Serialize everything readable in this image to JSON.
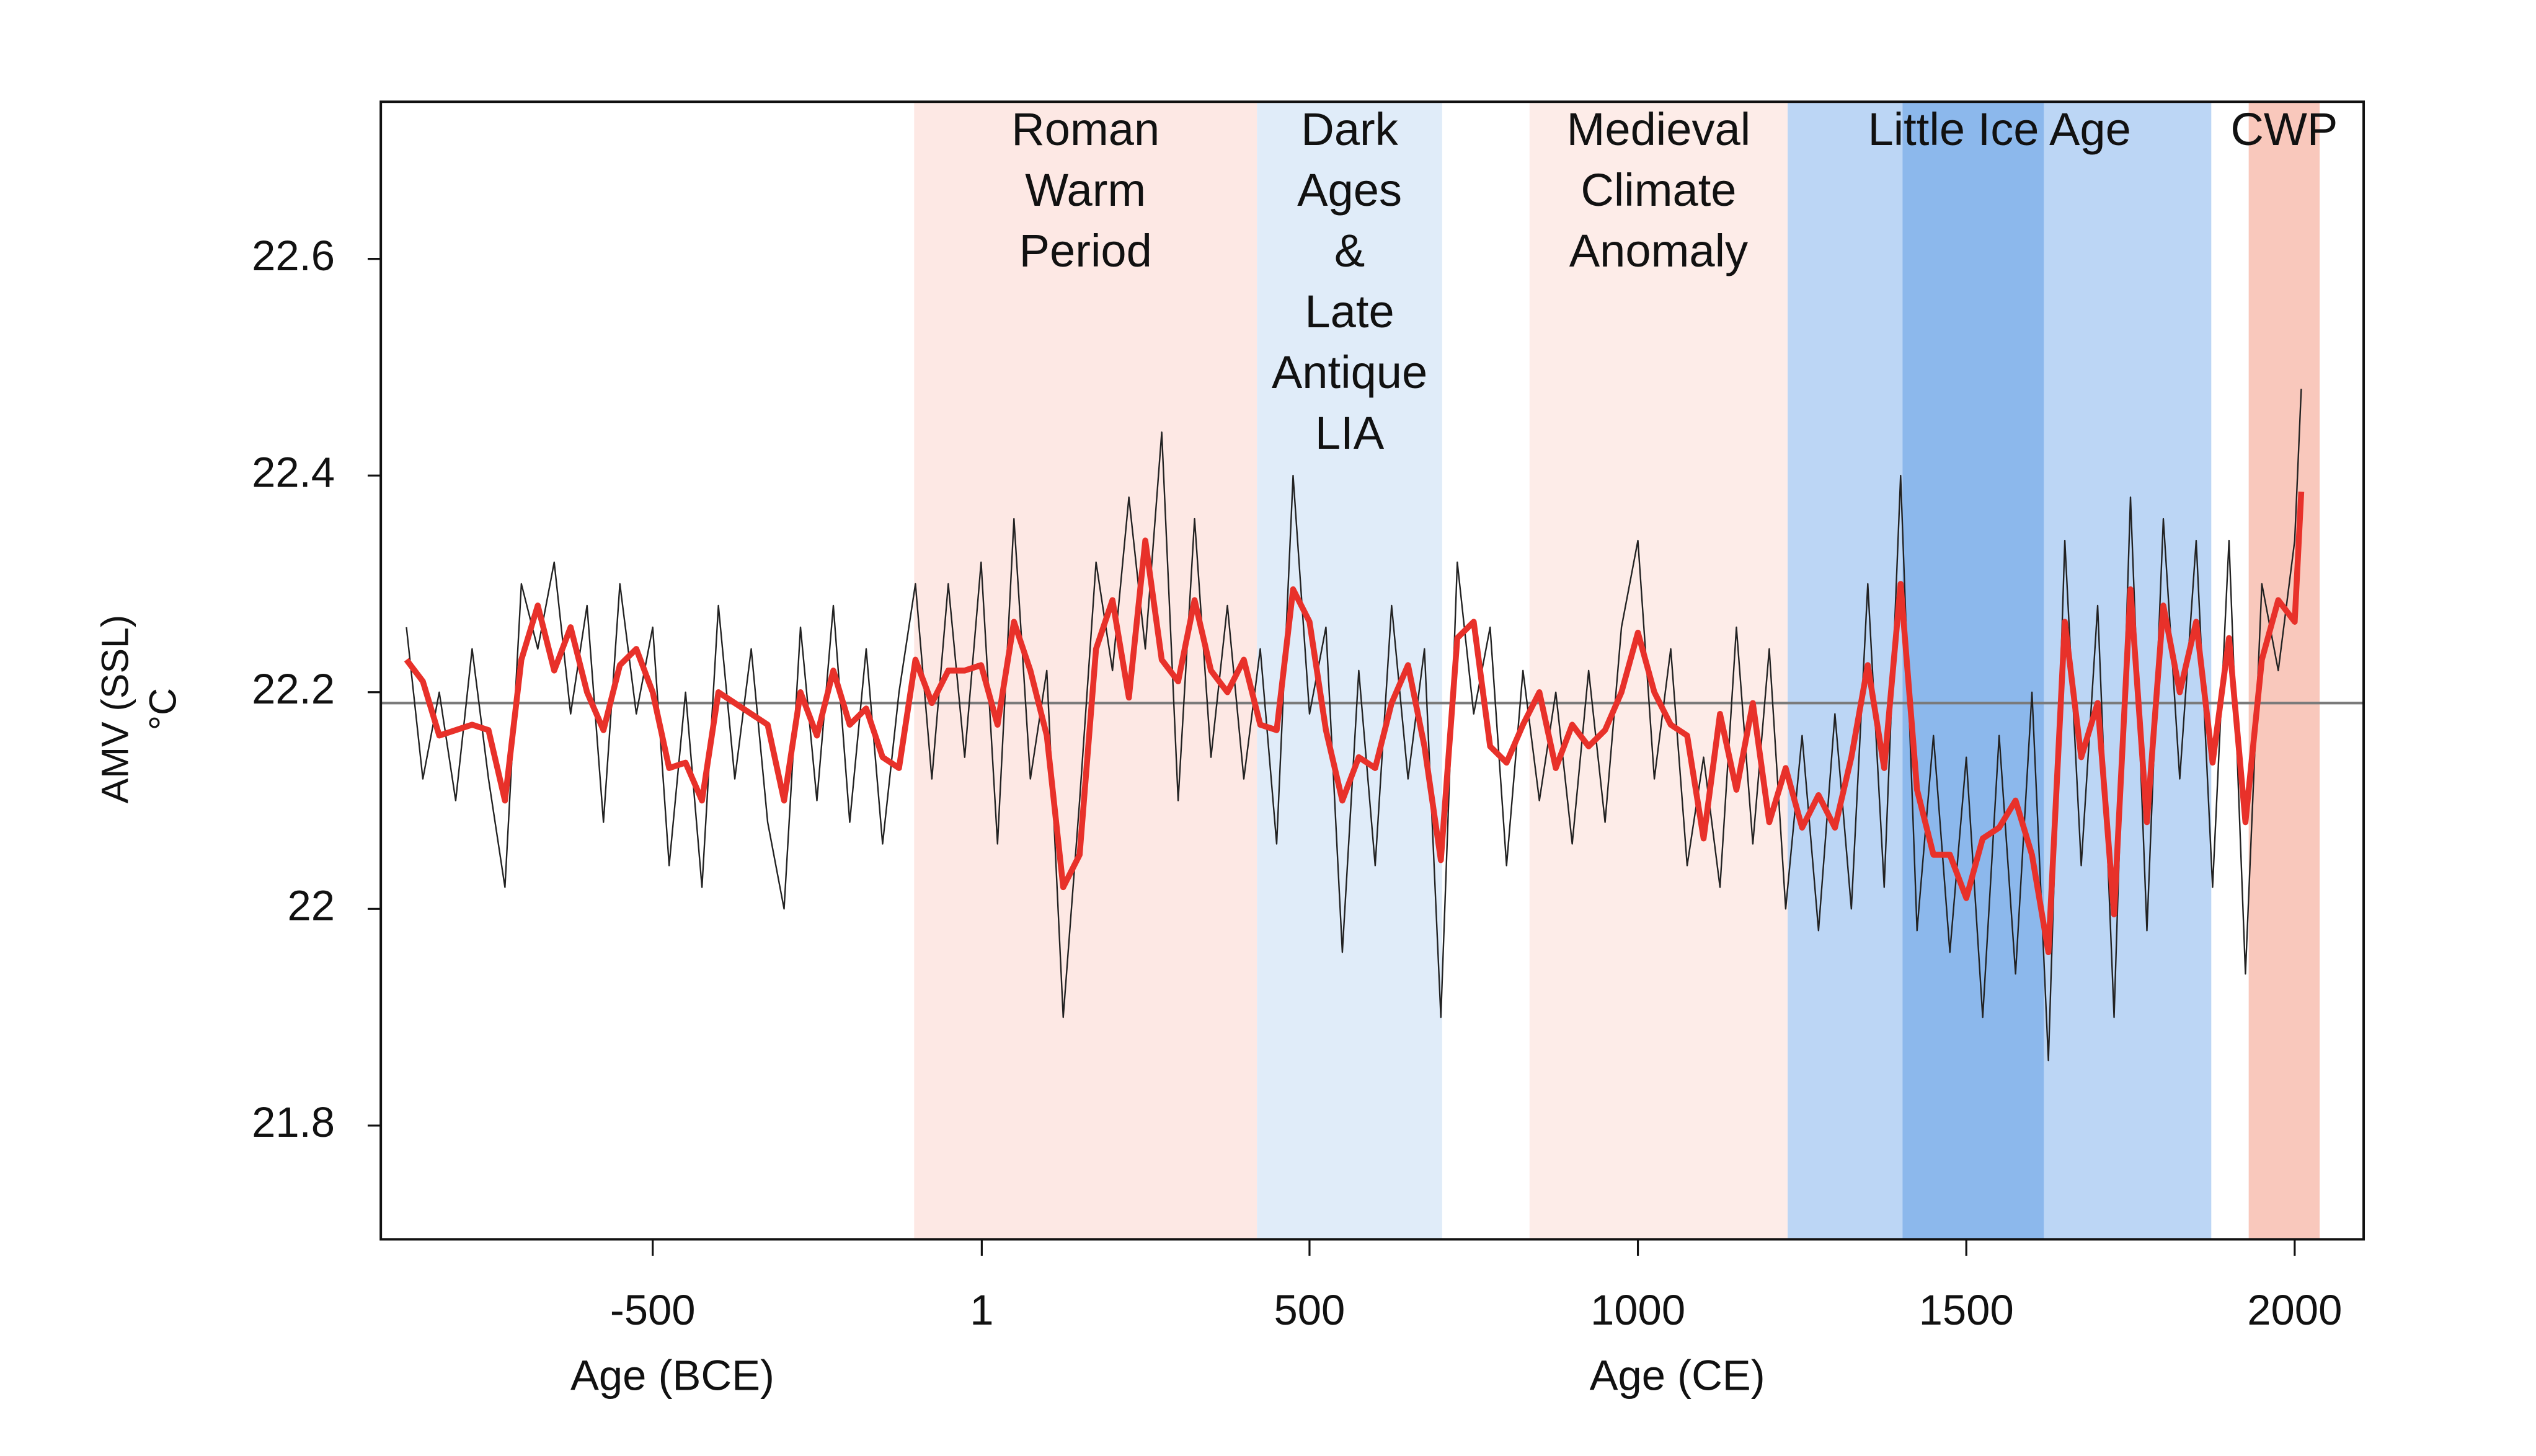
{
  "chart_data": {
    "type": "line",
    "ylabel": [
      "AMV (SSL)",
      "°C"
    ],
    "xlabels": [
      {
        "text": "Age (BCE)",
        "at": -470
      },
      {
        "text": "Age (CE)",
        "at": 1060
      }
    ],
    "xlim": [
      -914,
      2105
    ],
    "ylim": [
      21.695,
      22.745
    ],
    "xticks": [
      -500,
      1,
      500,
      1000,
      1500,
      2000
    ],
    "yticks": [
      21.8,
      22,
      22.2,
      22.4,
      22.6
    ],
    "reference": {
      "value": 22.19,
      "color": "#7a7a7a"
    },
    "periods": [
      {
        "label": [
          "Roman",
          "Warm",
          "Period"
        ],
        "start": -102,
        "end": 420,
        "color": "#fde8e4"
      },
      {
        "label": [
          "Dark",
          "Ages",
          "&",
          "Late",
          "Antique",
          "LIA"
        ],
        "start": 420,
        "end": 702,
        "color": "#e0ecf9"
      },
      {
        "label": [
          "Medieval",
          "Climate",
          "Anomaly"
        ],
        "start": 835,
        "end": 1228,
        "color": "#fdece8"
      },
      {
        "label": [
          "Little Ice Age"
        ],
        "start": 1228,
        "end": 1873,
        "color": "#bcd6f5"
      },
      {
        "start": 1403,
        "end": 1618,
        "color": "#8cb8ec"
      },
      {
        "label": [
          "CWP"
        ],
        "start": 1930,
        "end": 2038,
        "color": "#f9c8bc"
      }
    ],
    "x": [
      -875,
      -850,
      -825,
      -800,
      -775,
      -750,
      -725,
      -700,
      -675,
      -650,
      -625,
      -600,
      -575,
      -550,
      -525,
      -500,
      -475,
      -450,
      -425,
      -400,
      -375,
      -350,
      -325,
      -300,
      -275,
      -250,
      -225,
      -200,
      -175,
      -150,
      -125,
      -100,
      -75,
      -50,
      -25,
      0,
      25,
      50,
      75,
      100,
      125,
      150,
      175,
      200,
      225,
      250,
      275,
      300,
      325,
      350,
      375,
      400,
      425,
      450,
      475,
      500,
      525,
      550,
      575,
      600,
      625,
      650,
      675,
      700,
      725,
      750,
      775,
      800,
      825,
      850,
      875,
      900,
      925,
      950,
      975,
      1000,
      1025,
      1050,
      1075,
      1100,
      1125,
      1150,
      1175,
      1200,
      1225,
      1250,
      1275,
      1300,
      1325,
      1350,
      1375,
      1400,
      1425,
      1450,
      1475,
      1500,
      1525,
      1550,
      1575,
      1600,
      1625,
      1650,
      1675,
      1700,
      1725,
      1750,
      1775,
      1800,
      1825,
      1850,
      1875,
      1900,
      1925,
      1950,
      1975,
      2000,
      2010
    ],
    "series": [
      {
        "color": "#222222",
        "width": 0.9,
        "values": [
          22.26,
          22.12,
          22.2,
          22.1,
          22.24,
          22.12,
          22.02,
          22.3,
          22.24,
          22.32,
          22.18,
          22.28,
          22.08,
          22.3,
          22.18,
          22.26,
          22.04,
          22.2,
          22.02,
          22.28,
          22.12,
          22.24,
          22.08,
          22.0,
          22.26,
          22.1,
          22.28,
          22.08,
          22.24,
          22.06,
          22.2,
          22.3,
          22.12,
          22.3,
          22.14,
          22.32,
          22.06,
          22.36,
          22.12,
          22.22,
          21.9,
          22.1,
          22.32,
          22.22,
          22.38,
          22.24,
          22.44,
          22.1,
          22.36,
          22.14,
          22.28,
          22.12,
          22.24,
          22.06,
          22.4,
          22.18,
          22.26,
          21.96,
          22.22,
          22.04,
          22.28,
          22.12,
          22.24,
          21.9,
          22.32,
          22.18,
          22.26,
          22.04,
          22.22,
          22.1,
          22.2,
          22.06,
          22.22,
          22.08,
          22.26,
          22.34,
          22.12,
          22.24,
          22.04,
          22.14,
          22.02,
          22.26,
          22.06,
          22.24,
          22.0,
          22.16,
          21.98,
          22.18,
          22.0,
          22.3,
          22.02,
          22.4,
          21.98,
          22.16,
          21.96,
          22.14,
          21.9,
          22.16,
          21.94,
          22.2,
          21.86,
          22.34,
          22.04,
          22.28,
          21.9,
          22.38,
          21.98,
          22.36,
          22.12,
          22.34,
          22.02,
          22.34,
          21.94,
          22.3,
          22.22,
          22.34,
          22.48
        ]
      },
      {
        "color": "#e8312a",
        "width": 3.6,
        "values": [
          22.23,
          22.21,
          22.16,
          22.165,
          22.17,
          22.165,
          22.1,
          22.23,
          22.28,
          22.22,
          22.26,
          22.2,
          22.165,
          22.225,
          22.24,
          22.2,
          22.13,
          22.135,
          22.1,
          22.2,
          22.19,
          22.18,
          22.17,
          22.1,
          22.2,
          22.16,
          22.22,
          22.17,
          22.185,
          22.14,
          22.13,
          22.23,
          22.19,
          22.22,
          22.22,
          22.225,
          22.17,
          22.265,
          22.22,
          22.16,
          22.02,
          22.05,
          22.24,
          22.285,
          22.195,
          22.34,
          22.23,
          22.21,
          22.285,
          22.22,
          22.2,
          22.23,
          22.17,
          22.165,
          22.295,
          22.265,
          22.165,
          22.1,
          22.14,
          22.13,
          22.19,
          22.225,
          22.15,
          22.045,
          22.25,
          22.265,
          22.15,
          22.135,
          22.17,
          22.2,
          22.13,
          22.17,
          22.15,
          22.165,
          22.2,
          22.255,
          22.2,
          22.17,
          22.16,
          22.065,
          22.18,
          22.11,
          22.19,
          22.08,
          22.13,
          22.075,
          22.105,
          22.075,
          22.14,
          22.225,
          22.13,
          22.3,
          22.11,
          22.05,
          22.05,
          22.01,
          22.065,
          22.075,
          22.1,
          22.05,
          21.96,
          22.265,
          22.14,
          22.19,
          21.995,
          22.295,
          22.08,
          22.28,
          22.2,
          22.265,
          22.135,
          22.25,
          22.08,
          22.23,
          22.285,
          22.265,
          22.385
        ]
      }
    ]
  }
}
